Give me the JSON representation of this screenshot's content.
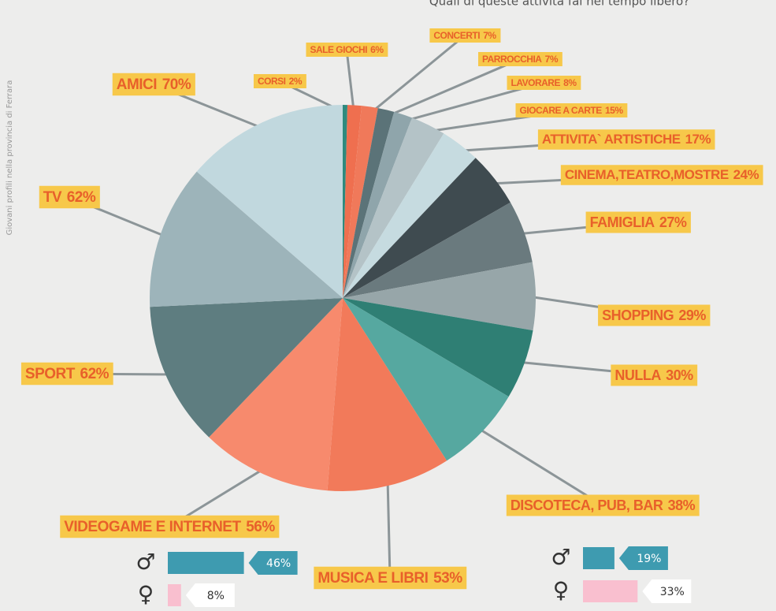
{
  "subtitle": "Quali di queste attività fai nel tempo libero?",
  "side_note": "Giovani profili nella provincia di Ferrara",
  "chart_data": [
    {
      "type": "pie",
      "categories": [
        "CORSI",
        "SALE GIOCHI",
        "CONCERTI",
        "PARROCCHIA",
        "LAVORARE",
        "GIOCARE A CARTE",
        "ATTIVITA` ARTISTICHE",
        "CINEMA,TEATRO,MOSTRE",
        "FAMIGLIA",
        "SHOPPING",
        "NULLA",
        "DISCOTECA, PUB, BAR",
        "MUSICA E LIBRI",
        "VIDEOGAME E INTERNET",
        "SPORT",
        "TV",
        "AMICI"
      ],
      "values": [
        2,
        6,
        7,
        7,
        8,
        15,
        17,
        24,
        27,
        29,
        30,
        38,
        53,
        56,
        62,
        62,
        70
      ],
      "value_labels": [
        "2%",
        "6%",
        "7%",
        "7%",
        "8%",
        "15%",
        "17%",
        "24%",
        "27%",
        "29%",
        "30%",
        "38%",
        "53%",
        "56%",
        "62%",
        "62%",
        "70%"
      ],
      "colors": [
        "#2f8a7e",
        "#ef6f4f",
        "#f0795a",
        "#5b7378",
        "#8fa5ab",
        "#b4c3c7",
        "#c6dbe0",
        "#3f4b50",
        "#6a7a7e",
        "#97a6a9",
        "#2f7f74",
        "#56a8a0",
        "#f27a5a",
        "#f78a6d",
        "#5e7d80",
        "#9db4ba",
        "#c1d8de"
      ]
    },
    {
      "type": "bar",
      "categories": [
        "♂",
        "♀"
      ],
      "values": [
        46,
        8
      ],
      "value_labels": [
        "46%",
        "8%"
      ],
      "colors": [
        "#3e9bb0",
        "#f9bfcf"
      ],
      "xlim": [
        0,
        50
      ]
    },
    {
      "type": "bar",
      "categories": [
        "♂",
        "♀"
      ],
      "values": [
        19,
        33
      ],
      "value_labels": [
        "19%",
        "33%"
      ],
      "colors": [
        "#3e9bb0",
        "#f9bfcf"
      ],
      "xlim": [
        0,
        50
      ]
    }
  ]
}
